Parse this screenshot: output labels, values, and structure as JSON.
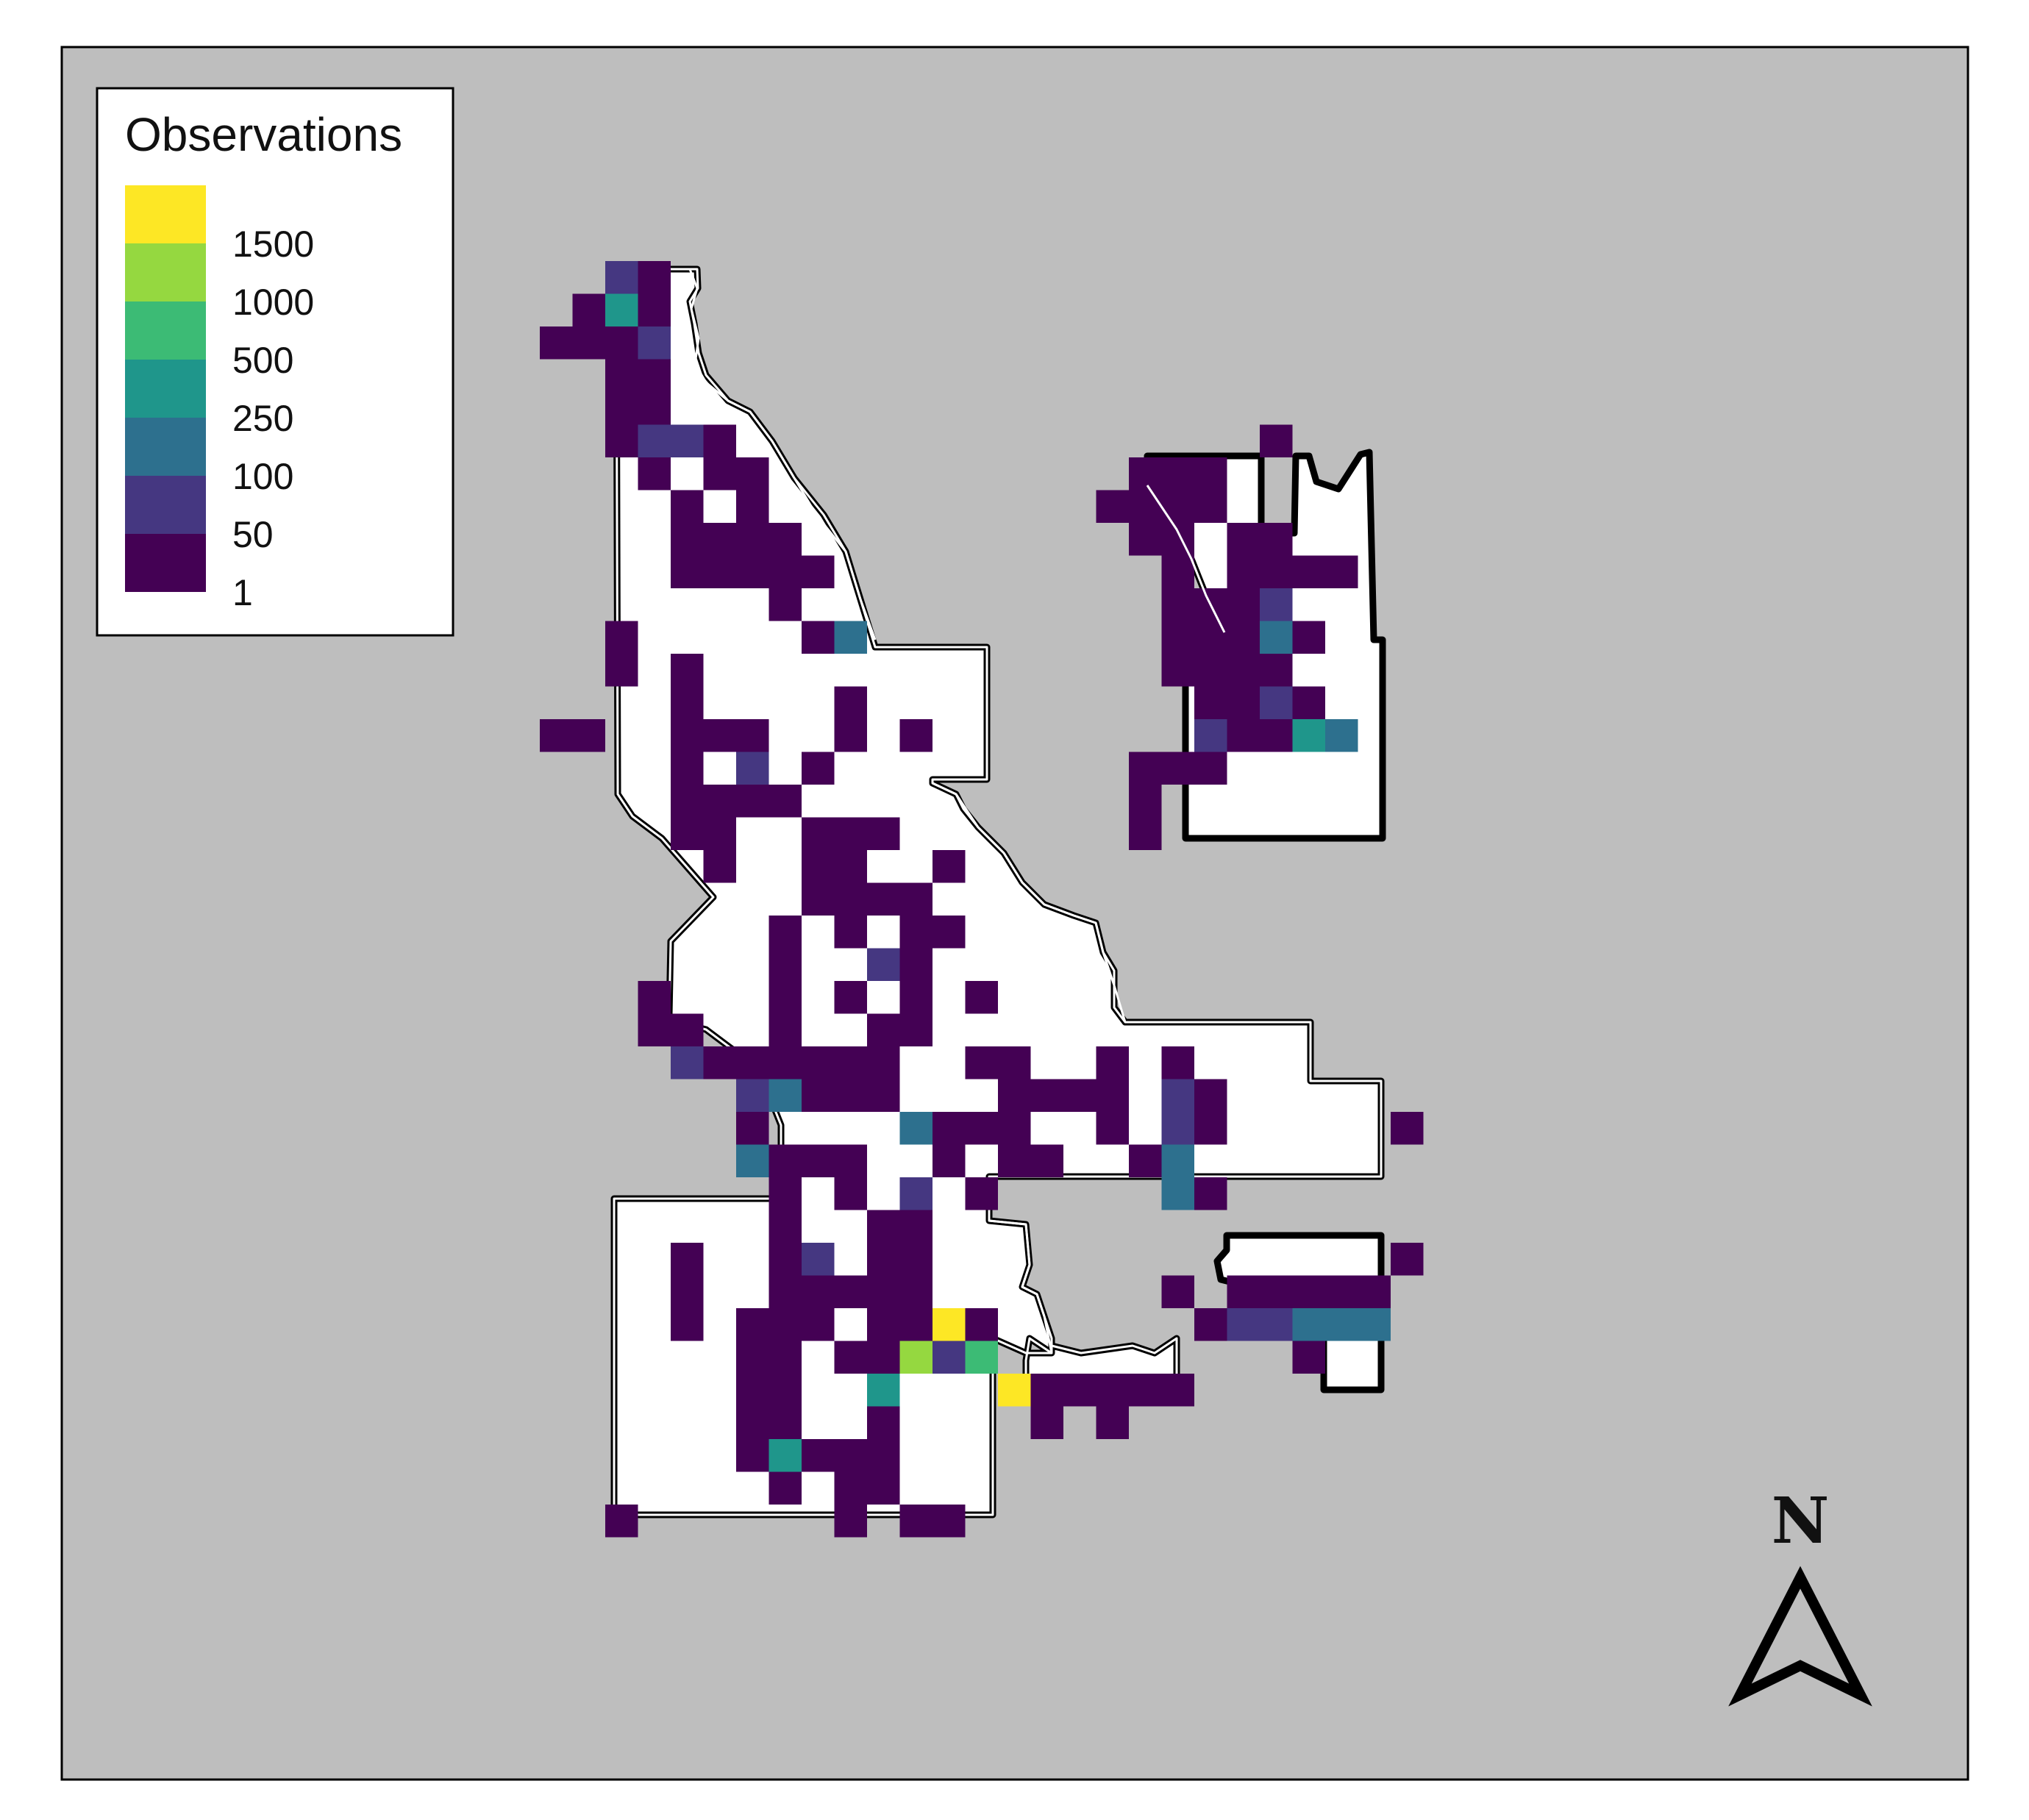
{
  "legend": {
    "title": "Observations",
    "bins": [
      {
        "label": "",
        "color": "#fde725"
      },
      {
        "label": "1500",
        "color": "#95d840"
      },
      {
        "label": "1000",
        "color": "#3cbb75"
      },
      {
        "label": "500",
        "color": "#1f968b"
      },
      {
        "label": "250",
        "color": "#2d708e"
      },
      {
        "label": "100",
        "color": "#453781"
      },
      {
        "label": "50",
        "color": "#440154"
      },
      {
        "label": "1",
        "color": ""
      }
    ]
  },
  "north_arrow": {
    "label": "N"
  },
  "colors": {
    "background": "#bebebe",
    "region_fill": "#ffffff",
    "region_outline": "#000000",
    "frame": "#000000"
  },
  "map_data": {
    "type": "heatmap",
    "grid": {
      "rows": 40,
      "cols": 60
    },
    "level_colors": {
      "1": "#440154",
      "2": "#453781",
      "3": "#2d708e",
      "4": "#1f968b",
      "5": "#3cbb75",
      "6": "#95d840",
      "7": "#fde725"
    },
    "cells": [
      [
        18,
        0,
        2
      ],
      [
        19,
        0,
        1
      ],
      [
        17,
        1,
        1
      ],
      [
        18,
        1,
        4
      ],
      [
        19,
        1,
        1
      ],
      [
        16,
        2,
        1
      ],
      [
        17,
        2,
        1
      ],
      [
        18,
        2,
        1
      ],
      [
        19,
        2,
        2
      ],
      [
        18,
        3,
        1
      ],
      [
        19,
        3,
        1
      ],
      [
        18,
        4,
        1
      ],
      [
        19,
        4,
        1
      ],
      [
        18,
        5,
        1
      ],
      [
        19,
        5,
        2
      ],
      [
        20,
        5,
        2
      ],
      [
        21,
        5,
        1
      ],
      [
        19,
        6,
        1
      ],
      [
        21,
        6,
        1
      ],
      [
        22,
        6,
        1
      ],
      [
        20,
        7,
        1
      ],
      [
        22,
        7,
        1
      ],
      [
        20,
        8,
        1
      ],
      [
        21,
        8,
        1
      ],
      [
        22,
        8,
        1
      ],
      [
        23,
        8,
        1
      ],
      [
        20,
        9,
        1
      ],
      [
        21,
        9,
        1
      ],
      [
        22,
        9,
        1
      ],
      [
        23,
        9,
        1
      ],
      [
        24,
        9,
        1
      ],
      [
        23,
        10,
        1
      ],
      [
        18,
        11,
        1
      ],
      [
        24,
        11,
        1
      ],
      [
        25,
        11,
        3
      ],
      [
        18,
        12,
        1
      ],
      [
        20,
        12,
        1
      ],
      [
        20,
        13,
        1
      ],
      [
        25,
        13,
        1
      ],
      [
        16,
        14,
        1
      ],
      [
        17,
        14,
        1
      ],
      [
        20,
        14,
        1
      ],
      [
        21,
        14,
        1
      ],
      [
        22,
        14,
        1
      ],
      [
        25,
        14,
        1
      ],
      [
        27,
        14,
        1
      ],
      [
        20,
        15,
        1
      ],
      [
        22,
        15,
        2
      ],
      [
        24,
        15,
        1
      ],
      [
        20,
        16,
        1
      ],
      [
        21,
        16,
        1
      ],
      [
        22,
        16,
        1
      ],
      [
        23,
        16,
        1
      ],
      [
        20,
        17,
        1
      ],
      [
        21,
        17,
        1
      ],
      [
        24,
        17,
        1
      ],
      [
        25,
        17,
        1
      ],
      [
        26,
        17,
        1
      ],
      [
        21,
        18,
        1
      ],
      [
        24,
        18,
        1
      ],
      [
        25,
        18,
        1
      ],
      [
        28,
        18,
        1
      ],
      [
        24,
        19,
        1
      ],
      [
        25,
        19,
        1
      ],
      [
        26,
        19,
        1
      ],
      [
        27,
        19,
        1
      ],
      [
        23,
        20,
        1
      ],
      [
        25,
        20,
        1
      ],
      [
        27,
        20,
        1
      ],
      [
        28,
        20,
        1
      ],
      [
        23,
        21,
        1
      ],
      [
        26,
        21,
        2
      ],
      [
        27,
        21,
        1
      ],
      [
        19,
        22,
        1
      ],
      [
        23,
        22,
        1
      ],
      [
        25,
        22,
        1
      ],
      [
        27,
        22,
        1
      ],
      [
        29,
        22,
        1
      ],
      [
        19,
        23,
        1
      ],
      [
        20,
        23,
        1
      ],
      [
        23,
        23,
        1
      ],
      [
        26,
        23,
        1
      ],
      [
        27,
        23,
        1
      ],
      [
        20,
        24,
        2
      ],
      [
        21,
        24,
        1
      ],
      [
        22,
        24,
        1
      ],
      [
        23,
        24,
        1
      ],
      [
        24,
        24,
        1
      ],
      [
        25,
        24,
        1
      ],
      [
        26,
        24,
        1
      ],
      [
        29,
        24,
        1
      ],
      [
        30,
        24,
        1
      ],
      [
        33,
        24,
        1
      ],
      [
        35,
        24,
        1
      ],
      [
        22,
        25,
        2
      ],
      [
        23,
        25,
        3
      ],
      [
        24,
        25,
        1
      ],
      [
        25,
        25,
        1
      ],
      [
        26,
        25,
        1
      ],
      [
        30,
        25,
        1
      ],
      [
        31,
        25,
        1
      ],
      [
        32,
        25,
        1
      ],
      [
        33,
        25,
        1
      ],
      [
        35,
        25,
        2
      ],
      [
        36,
        25,
        1
      ],
      [
        22,
        26,
        1
      ],
      [
        27,
        26,
        3
      ],
      [
        28,
        26,
        1
      ],
      [
        29,
        26,
        1
      ],
      [
        30,
        26,
        1
      ],
      [
        33,
        26,
        1
      ],
      [
        35,
        26,
        2
      ],
      [
        36,
        26,
        1
      ],
      [
        42,
        26,
        1
      ],
      [
        22,
        27,
        3
      ],
      [
        23,
        27,
        1
      ],
      [
        24,
        27,
        1
      ],
      [
        25,
        27,
        1
      ],
      [
        28,
        27,
        1
      ],
      [
        30,
        27,
        1
      ],
      [
        31,
        27,
        1
      ],
      [
        34,
        27,
        1
      ],
      [
        35,
        27,
        3
      ],
      [
        23,
        28,
        1
      ],
      [
        25,
        28,
        1
      ],
      [
        27,
        28,
        2
      ],
      [
        29,
        28,
        1
      ],
      [
        35,
        28,
        3
      ],
      [
        36,
        28,
        1
      ],
      [
        23,
        29,
        1
      ],
      [
        26,
        29,
        1
      ],
      [
        27,
        29,
        1
      ],
      [
        20,
        30,
        1
      ],
      [
        23,
        30,
        1
      ],
      [
        24,
        30,
        2
      ],
      [
        26,
        30,
        1
      ],
      [
        27,
        30,
        1
      ],
      [
        42,
        30,
        1
      ],
      [
        20,
        31,
        1
      ],
      [
        23,
        31,
        1
      ],
      [
        24,
        31,
        1
      ],
      [
        25,
        31,
        1
      ],
      [
        26,
        31,
        1
      ],
      [
        27,
        31,
        1
      ],
      [
        35,
        31,
        1
      ],
      [
        37,
        31,
        1
      ],
      [
        38,
        31,
        1
      ],
      [
        39,
        31,
        1
      ],
      [
        40,
        31,
        1
      ],
      [
        41,
        31,
        1
      ],
      [
        20,
        32,
        1
      ],
      [
        22,
        32,
        1
      ],
      [
        23,
        32,
        1
      ],
      [
        24,
        32,
        1
      ],
      [
        26,
        32,
        1
      ],
      [
        27,
        32,
        1
      ],
      [
        28,
        32,
        7
      ],
      [
        29,
        32,
        1
      ],
      [
        36,
        32,
        1
      ],
      [
        37,
        32,
        2
      ],
      [
        38,
        32,
        2
      ],
      [
        39,
        32,
        3
      ],
      [
        40,
        32,
        3
      ],
      [
        41,
        32,
        3
      ],
      [
        22,
        33,
        1
      ],
      [
        23,
        33,
        1
      ],
      [
        25,
        33,
        1
      ],
      [
        26,
        33,
        1
      ],
      [
        27,
        33,
        6
      ],
      [
        28,
        33,
        2
      ],
      [
        29,
        33,
        5
      ],
      [
        39,
        33,
        1
      ],
      [
        22,
        34,
        1
      ],
      [
        23,
        34,
        1
      ],
      [
        26,
        34,
        4
      ],
      [
        30,
        34,
        7
      ],
      [
        31,
        34,
        1
      ],
      [
        32,
        34,
        1
      ],
      [
        33,
        34,
        1
      ],
      [
        34,
        34,
        1
      ],
      [
        35,
        34,
        1
      ],
      [
        22,
        35,
        1
      ],
      [
        23,
        35,
        1
      ],
      [
        26,
        35,
        1
      ],
      [
        31,
        35,
        1
      ],
      [
        33,
        35,
        1
      ],
      [
        22,
        36,
        1
      ],
      [
        23,
        36,
        4
      ],
      [
        24,
        36,
        1
      ],
      [
        25,
        36,
        1
      ],
      [
        26,
        36,
        1
      ],
      [
        23,
        37,
        1
      ],
      [
        25,
        37,
        1
      ],
      [
        26,
        37,
        1
      ],
      [
        18,
        38,
        1
      ],
      [
        25,
        38,
        1
      ],
      [
        27,
        38,
        1
      ],
      [
        28,
        38,
        1
      ],
      [
        38,
        5,
        1
      ],
      [
        34,
        6,
        1
      ],
      [
        35,
        6,
        1
      ],
      [
        36,
        6,
        1
      ],
      [
        33,
        7,
        1
      ],
      [
        34,
        7,
        1
      ],
      [
        35,
        7,
        1
      ],
      [
        36,
        7,
        1
      ],
      [
        34,
        8,
        1
      ],
      [
        35,
        8,
        1
      ],
      [
        37,
        8,
        1
      ],
      [
        38,
        8,
        1
      ],
      [
        35,
        9,
        1
      ],
      [
        37,
        9,
        1
      ],
      [
        38,
        9,
        1
      ],
      [
        39,
        9,
        1
      ],
      [
        40,
        9,
        1
      ],
      [
        35,
        10,
        1
      ],
      [
        36,
        10,
        1
      ],
      [
        37,
        10,
        1
      ],
      [
        38,
        10,
        2
      ],
      [
        35,
        11,
        1
      ],
      [
        36,
        11,
        1
      ],
      [
        37,
        11,
        1
      ],
      [
        38,
        11,
        3
      ],
      [
        39,
        11,
        1
      ],
      [
        35,
        12,
        1
      ],
      [
        36,
        12,
        1
      ],
      [
        37,
        12,
        1
      ],
      [
        38,
        12,
        1
      ],
      [
        36,
        13,
        1
      ],
      [
        37,
        13,
        1
      ],
      [
        38,
        13,
        2
      ],
      [
        39,
        13,
        1
      ],
      [
        36,
        14,
        2
      ],
      [
        37,
        14,
        1
      ],
      [
        38,
        14,
        1
      ],
      [
        39,
        14,
        4
      ],
      [
        40,
        14,
        3
      ],
      [
        34,
        15,
        1
      ],
      [
        35,
        15,
        1
      ],
      [
        36,
        15,
        1
      ],
      [
        34,
        16,
        1
      ],
      [
        34,
        17,
        1
      ]
    ]
  }
}
